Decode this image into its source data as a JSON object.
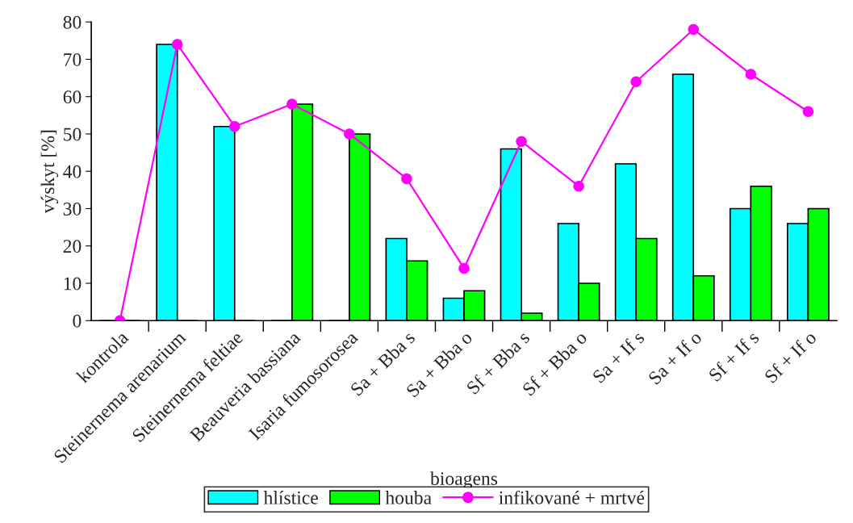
{
  "chart_data": {
    "type": "bar",
    "xlabel": "bioagens",
    "ylabel": "výskyt [%]",
    "categories": [
      "kontrola",
      "Steinernema arenarium",
      "Steinernema feltiae",
      "Beauveria bassiana",
      "Isaria fumosorosea",
      "Sa + Bba s",
      "Sa + Bba o",
      "Sf + Bba s",
      "Sf + Bba o",
      "Sa + If s",
      "Sa + If o",
      "Sf + If s",
      "Sf + If o"
    ],
    "series": [
      {
        "name": "hlístice",
        "color": "#00ffff",
        "values": [
          0,
          74,
          52,
          0,
          0,
          22,
          6,
          46,
          26,
          42,
          66,
          30,
          26
        ]
      },
      {
        "name": "houba",
        "color": "#00ff00",
        "values": [
          0,
          0,
          0,
          58,
          50,
          16,
          8,
          2,
          10,
          22,
          12,
          36,
          30
        ]
      },
      {
        "name": "infikované + mrtvé",
        "color": "#ff00ff",
        "type": "line",
        "marker": "circle",
        "values": [
          0,
          74,
          52,
          58,
          50,
          38,
          14,
          48,
          36,
          64,
          78,
          66,
          56
        ]
      }
    ],
    "ylim": [
      0,
      80
    ],
    "yticks": [
      0,
      10,
      20,
      30,
      40,
      50,
      60,
      70,
      80
    ],
    "grid": false,
    "legend": "bottom"
  }
}
